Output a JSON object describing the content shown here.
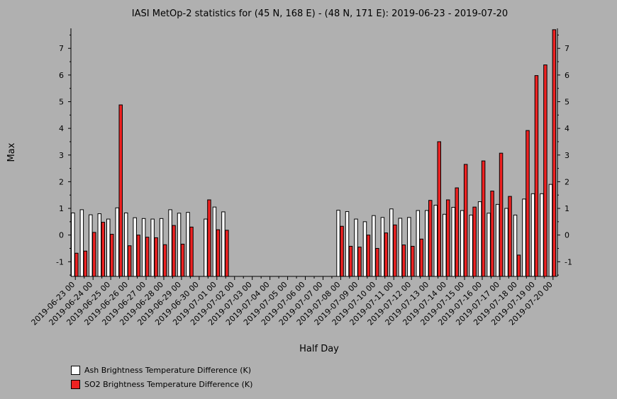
{
  "chart_data": {
    "type": "bar",
    "title": "IASI MetOp-2 statistics for (45 N, 168 E) - (48 N, 171 E): 2019-06-23 - 2019-07-20",
    "xlabel": "Half Day",
    "ylabel": "Max",
    "ylim": [
      -1.55,
      7.75
    ],
    "yticks": [
      -1,
      0,
      1,
      2,
      3,
      4,
      5,
      6,
      7
    ],
    "grid": false,
    "legend_position": "bottom-left",
    "x_tick_labels": [
      "2019-06-23 00",
      "2019-06-24 00",
      "2019-06-25 00",
      "2019-06-26 00",
      "2019-06-27 00",
      "2019-06-28 00",
      "2019-06-29 00",
      "2019-06-30 00",
      "2019-07-01 00",
      "2019-07-02 00",
      "2019-07-03 00",
      "2019-07-04 00",
      "2019-07-05 00",
      "2019-07-06 00",
      "2019-07-07 00",
      "2019-07-08 00",
      "2019-07-09 00",
      "2019-07-10 00",
      "2019-07-11 00",
      "2019-07-12 00",
      "2019-07-13 00",
      "2019-07-14 00",
      "2019-07-15 00",
      "2019-07-16 00",
      "2019-07-17 00",
      "2019-07-18 00",
      "2019-07-19 00",
      "2019-07-20 00"
    ],
    "categories": [
      "2019-06-23 00",
      "2019-06-23 12",
      "2019-06-24 00",
      "2019-06-24 12",
      "2019-06-25 00",
      "2019-06-25 12",
      "2019-06-26 00",
      "2019-06-26 12",
      "2019-06-27 00",
      "2019-06-27 12",
      "2019-06-28 00",
      "2019-06-28 12",
      "2019-06-29 00",
      "2019-06-29 12",
      "2019-06-30 00",
      "2019-06-30 12",
      "2019-07-01 00",
      "2019-07-01 12",
      "2019-07-02 00",
      "2019-07-02 12",
      "2019-07-03 00",
      "2019-07-03 12",
      "2019-07-04 00",
      "2019-07-04 12",
      "2019-07-05 00",
      "2019-07-05 12",
      "2019-07-06 00",
      "2019-07-06 12",
      "2019-07-07 00",
      "2019-07-07 12",
      "2019-07-08 00",
      "2019-07-08 12",
      "2019-07-09 00",
      "2019-07-09 12",
      "2019-07-10 00",
      "2019-07-10 12",
      "2019-07-11 00",
      "2019-07-11 12",
      "2019-07-12 00",
      "2019-07-12 12",
      "2019-07-13 00",
      "2019-07-13 12",
      "2019-07-14 00",
      "2019-07-14 12",
      "2019-07-15 00",
      "2019-07-15 12",
      "2019-07-16 00",
      "2019-07-16 12",
      "2019-07-17 00",
      "2019-07-17 12",
      "2019-07-18 00",
      "2019-07-18 12",
      "2019-07-19 00",
      "2019-07-19 12",
      "2019-07-20 00"
    ],
    "series": [
      {
        "name": "Ash Brightness Temperature Difference (K)",
        "color": "#ffffff",
        "values": [
          0.83,
          0.95,
          0.76,
          0.8,
          0.6,
          1.02,
          0.83,
          0.65,
          0.62,
          0.6,
          0.62,
          0.95,
          0.82,
          0.85,
          null,
          0.6,
          1.05,
          0.87,
          null,
          null,
          null,
          null,
          null,
          null,
          null,
          null,
          null,
          null,
          null,
          null,
          0.93,
          0.88,
          0.6,
          0.5,
          0.73,
          0.66,
          0.98,
          0.63,
          0.66,
          0.92,
          0.92,
          1.12,
          0.78,
          1.04,
          0.92,
          0.75,
          1.25,
          0.82,
          1.15,
          1.0,
          0.75,
          1.35,
          1.55,
          1.55,
          1.9
        ]
      },
      {
        "name": "SO2 Brightness Temperature Difference (K)",
        "color": "#ee2222",
        "values": [
          -0.68,
          -0.6,
          0.1,
          0.48,
          0.03,
          4.88,
          -0.4,
          0.0,
          -0.08,
          -0.1,
          -0.36,
          0.36,
          -0.34,
          0.3,
          null,
          1.32,
          0.2,
          0.18,
          null,
          null,
          null,
          null,
          null,
          null,
          null,
          null,
          null,
          null,
          null,
          null,
          0.33,
          -0.42,
          -0.45,
          0.0,
          -0.5,
          0.08,
          0.38,
          -0.37,
          -0.42,
          -0.15,
          1.3,
          3.5,
          1.32,
          1.77,
          2.65,
          1.05,
          2.78,
          1.65,
          3.07,
          1.45,
          -0.75,
          3.92,
          5.98,
          6.38,
          7.7
        ]
      }
    ]
  }
}
